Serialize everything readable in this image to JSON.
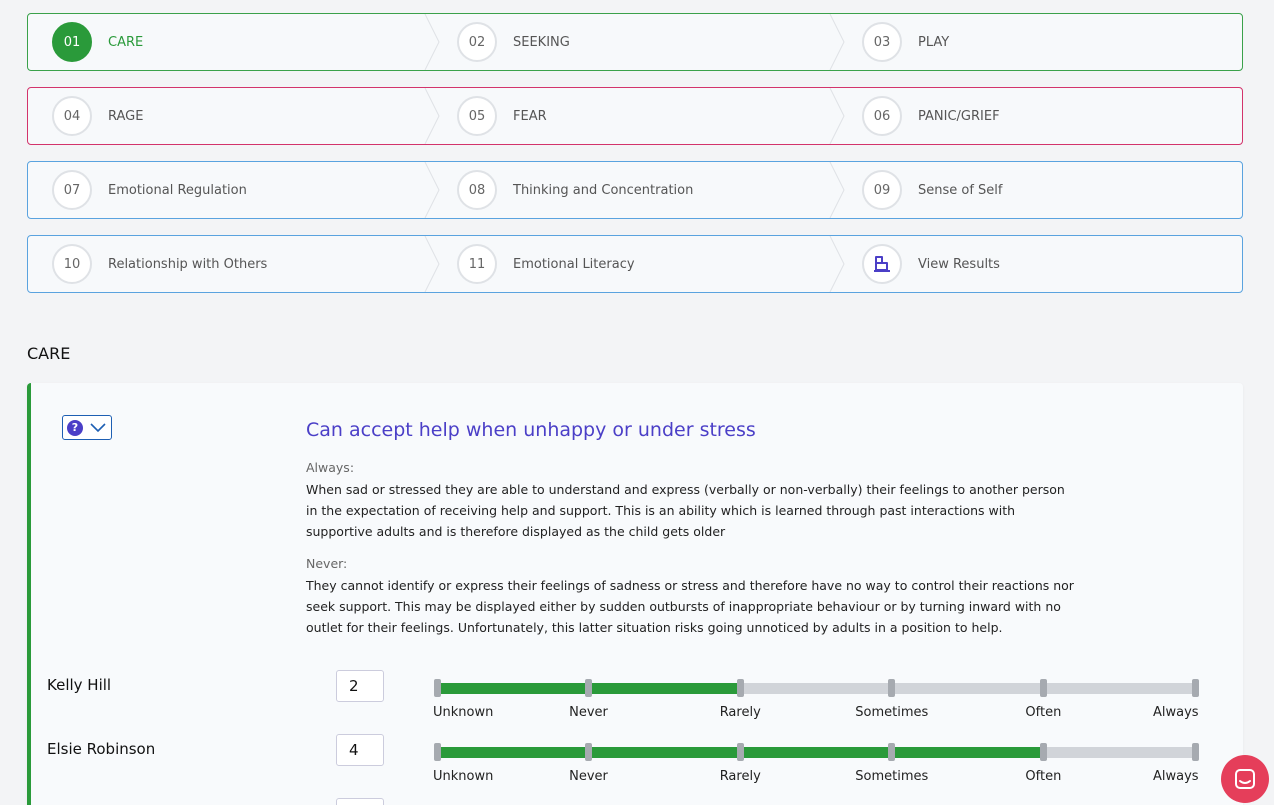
{
  "steps": [
    {
      "num": "01",
      "label": "CARE"
    },
    {
      "num": "02",
      "label": "SEEKING"
    },
    {
      "num": "03",
      "label": "PLAY"
    },
    {
      "num": "04",
      "label": "RAGE"
    },
    {
      "num": "05",
      "label": "FEAR"
    },
    {
      "num": "06",
      "label": "PANIC/GRIEF"
    },
    {
      "num": "07",
      "label": "Emotional Regulation"
    },
    {
      "num": "08",
      "label": "Thinking and Concentration"
    },
    {
      "num": "09",
      "label": "Sense of Self"
    },
    {
      "num": "10",
      "label": "Relationship with Others"
    },
    {
      "num": "11",
      "label": "Emotional Literacy"
    },
    {
      "num": "",
      "label": "View Results",
      "icon": "results-icon"
    }
  ],
  "colors": {
    "row1": "#3aa14a",
    "row2": "#d3336b",
    "row3": "#5aa3df",
    "row4": "#5aa3df",
    "accent": "#2a9a3a",
    "question": "#4b3fc7"
  },
  "section_title": "CARE",
  "question": {
    "title": "Can accept help when unhappy or under stress",
    "always_label": "Always:",
    "always_text": "When sad or stressed they are able to understand and express (verbally or non-verbally) their feelings to another person in the expectation of receiving help and support. This is an ability which is learned through past interactions with supportive adults and is therefore displayed as the child gets older",
    "never_label": "Never:",
    "never_text": "They cannot identify or express their feelings of sadness or stress and therefore have no way to control their reactions nor seek support. This may be displayed either by sudden outbursts of inappropriate behaviour or by turning inward with no outlet for their feelings. Unfortunately, this latter situation risks going unnoticed by adults in a position to help."
  },
  "scale_labels": [
    "Unknown",
    "Never",
    "Rarely",
    "Sometimes",
    "Often",
    "Always"
  ],
  "students": [
    {
      "name": "Kelly Hill",
      "score": "2",
      "level": 2
    },
    {
      "name": "Elsie Robinson",
      "score": "4",
      "level": 4
    }
  ]
}
